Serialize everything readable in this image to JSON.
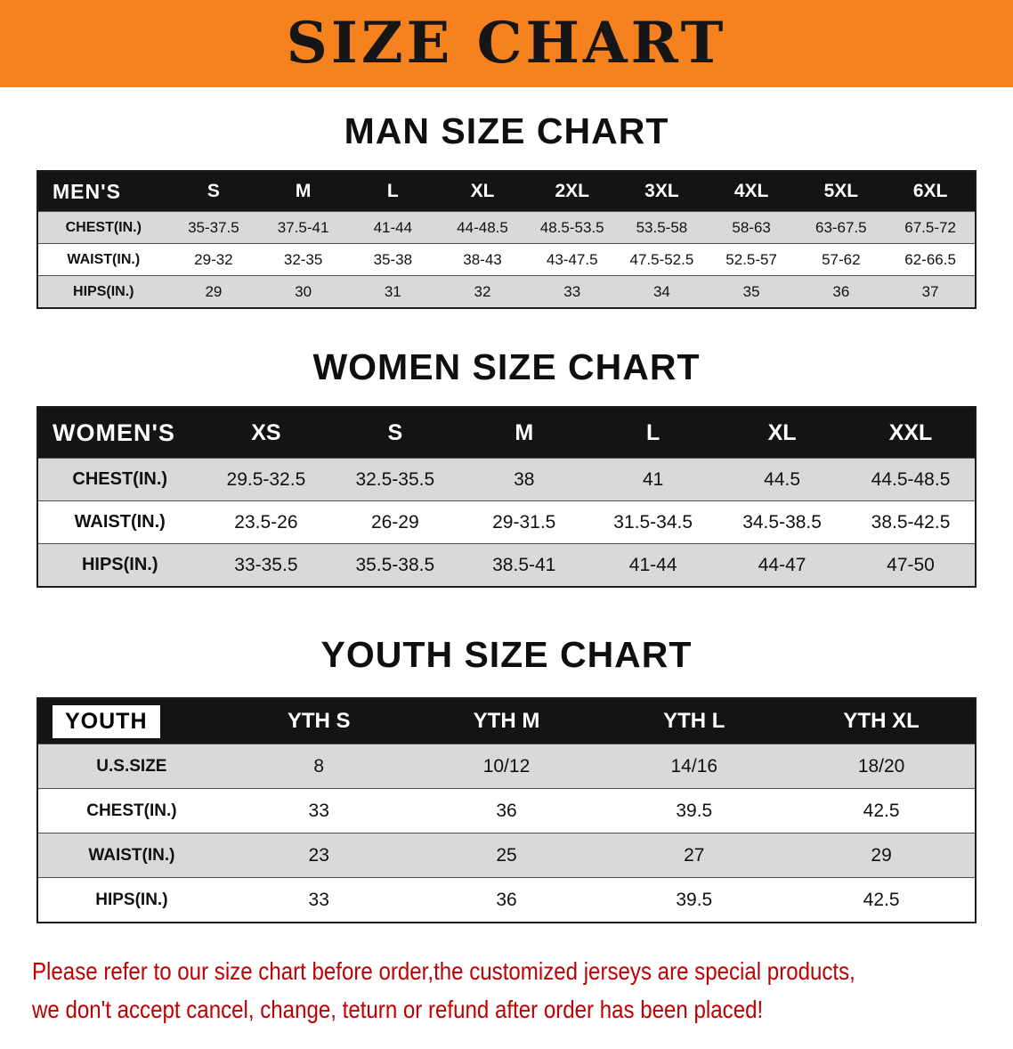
{
  "banner": {
    "title": "SIZE CHART"
  },
  "headings": {
    "men": "MAN SIZE CHART",
    "women": "WOMEN SIZE CHART",
    "youth": "YOUTH SIZE CHART"
  },
  "tables": {
    "men": {
      "label": "MEN'S",
      "columns": [
        "S",
        "M",
        "L",
        "XL",
        "2XL",
        "3XL",
        "4XL",
        "5XL",
        "6XL"
      ],
      "rows": [
        {
          "label": "CHEST(IN.)",
          "values": [
            "35-37.5",
            "37.5-41",
            "41-44",
            "44-48.5",
            "48.5-53.5",
            "53.5-58",
            "58-63",
            "63-67.5",
            "67.5-72"
          ]
        },
        {
          "label": "WAIST(IN.)",
          "values": [
            "29-32",
            "32-35",
            "35-38",
            "38-43",
            "43-47.5",
            "47.5-52.5",
            "52.5-57",
            "57-62",
            "62-66.5"
          ]
        },
        {
          "label": "HIPS(IN.)",
          "values": [
            "29",
            "30",
            "31",
            "32",
            "33",
            "34",
            "35",
            "36",
            "37"
          ]
        }
      ]
    },
    "women": {
      "label": "WOMEN'S",
      "columns": [
        "XS",
        "S",
        "M",
        "L",
        "XL",
        "XXL"
      ],
      "rows": [
        {
          "label": "CHEST(IN.)",
          "values": [
            "29.5-32.5",
            "32.5-35.5",
            "38",
            "41",
            "44.5",
            "44.5-48.5"
          ]
        },
        {
          "label": "WAIST(IN.)",
          "values": [
            "23.5-26",
            "26-29",
            "29-31.5",
            "31.5-34.5",
            "34.5-38.5",
            "38.5-42.5"
          ]
        },
        {
          "label": "HIPS(IN.)",
          "values": [
            "33-35.5",
            "35.5-38.5",
            "38.5-41",
            "41-44",
            "44-47",
            "47-50"
          ]
        }
      ]
    },
    "youth": {
      "label": "YOUTH",
      "columns": [
        "YTH S",
        "YTH M",
        "YTH L",
        "YTH XL"
      ],
      "rows": [
        {
          "label": "U.S.SIZE",
          "values": [
            "8",
            "10/12",
            "14/16",
            "18/20"
          ]
        },
        {
          "label": "CHEST(IN.)",
          "values": [
            "33",
            "36",
            "39.5",
            "42.5"
          ]
        },
        {
          "label": "WAIST(IN.)",
          "values": [
            "23",
            "25",
            "27",
            "29"
          ]
        },
        {
          "label": "HIPS(IN.)",
          "values": [
            "33",
            "36",
            "39.5",
            "42.5"
          ]
        }
      ]
    }
  },
  "footer": {
    "lines": [
      "Please refer to our size chart before order,the customized jerseys are special products,",
      "we don't accept cancel, change, teturn or refund after order has been placed!"
    ]
  },
  "colors": {
    "banner_bg": "#f5821f",
    "table_header_bg": "#141414",
    "row_alt": "#d9d9d9",
    "footer_text": "#c00000"
  }
}
